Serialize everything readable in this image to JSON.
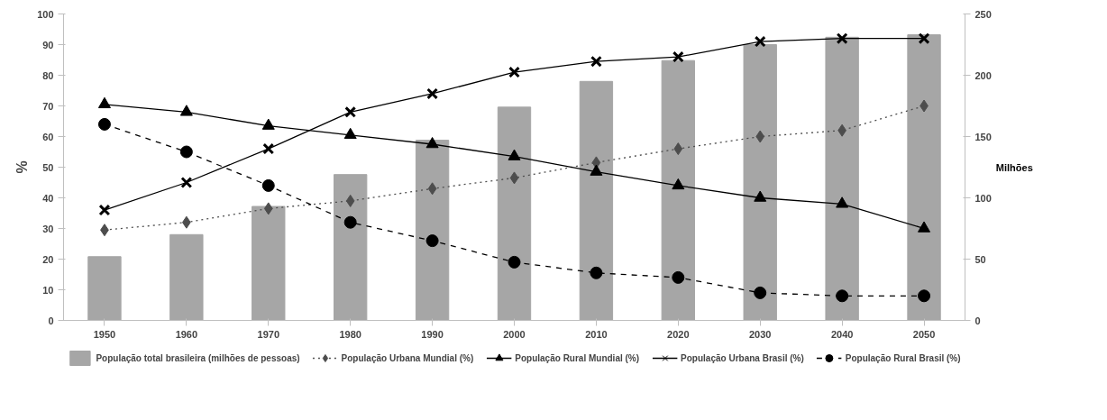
{
  "chart_data": {
    "type": "line",
    "ylabel": "%",
    "y2label": "Milhões",
    "categories": [
      "1950",
      "1960",
      "1970",
      "1980",
      "1990",
      "2000",
      "2010",
      "2020",
      "2030",
      "2040",
      "2050"
    ],
    "ylim": [
      0,
      100
    ],
    "yticks": [
      0,
      10,
      20,
      30,
      40,
      50,
      60,
      70,
      80,
      90,
      100
    ],
    "y2lim": [
      0,
      250
    ],
    "y2ticks": [
      0,
      50,
      100,
      150,
      200,
      250
    ],
    "grid": false,
    "legend": "bottom",
    "series": [
      {
        "name": "População total brasileira (milhões de pessoas)",
        "type": "bar",
        "axis": "y2",
        "color": "#a6a6a6",
        "values": [
          52,
          70,
          93,
          119,
          147,
          174,
          195,
          212,
          225,
          231,
          233
        ]
      },
      {
        "name": "População Urbana Mundial (%)",
        "color": "#4d4d4d",
        "marker": "diamond",
        "line_style": "dotted",
        "values": [
          29.5,
          32,
          36.5,
          39,
          43,
          46.5,
          51.5,
          56,
          60,
          62,
          70
        ]
      },
      {
        "name": "População Rural Mundial (%)",
        "color": "#000000",
        "marker": "triangle",
        "line_style": "solid",
        "values": [
          70.5,
          68,
          63.5,
          60.5,
          57.5,
          53.5,
          48.5,
          44,
          40,
          38,
          30
        ]
      },
      {
        "name": "População Urbana Brasil (%)",
        "color": "#000000",
        "marker": "cross",
        "line_style": "solid",
        "values": [
          36,
          45,
          56,
          68,
          74,
          81,
          84.5,
          86,
          91,
          92,
          92
        ]
      },
      {
        "name": "População Rural Brasil (%)",
        "color": "#000000",
        "marker": "circle",
        "line_style": "dashed",
        "values": [
          64,
          55,
          44,
          32,
          26,
          19,
          15.5,
          14,
          9,
          8,
          8
        ]
      }
    ]
  }
}
